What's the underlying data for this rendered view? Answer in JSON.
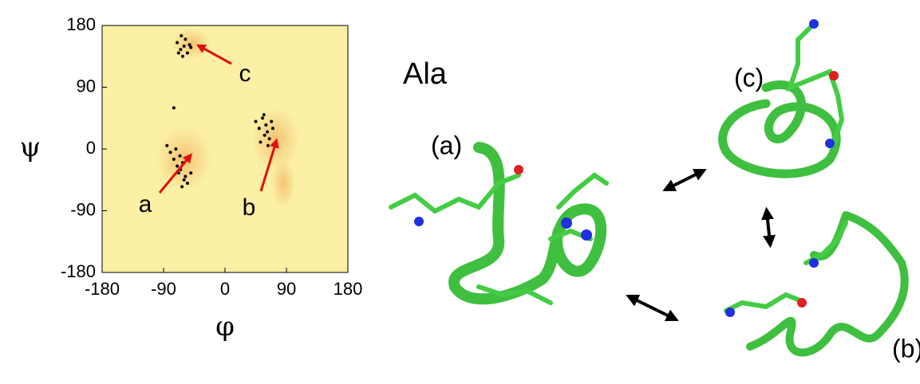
{
  "chart_data": {
    "type": "scatter",
    "xlabel": "φ",
    "ylabel": "ψ",
    "xlim": [
      -180,
      180
    ],
    "ylim": [
      -180,
      180
    ],
    "xticks": [
      -180,
      -90,
      0,
      90,
      180
    ],
    "yticks": [
      -180,
      -90,
      0,
      90,
      180
    ],
    "color": "#000000",
    "x": [
      -80,
      -75,
      -70,
      -68,
      -65,
      -62,
      -60,
      -58,
      -55,
      -72,
      -66,
      -50,
      -85,
      -63,
      45,
      50,
      55,
      58,
      60,
      62,
      65,
      68,
      52,
      70,
      57,
      63,
      -70,
      -65,
      -60,
      -55,
      -50,
      -62,
      -58,
      -68,
      -52,
      -64,
      -75
    ],
    "values": [
      -5,
      -15,
      -25,
      -35,
      -30,
      -20,
      -45,
      -40,
      -50,
      0,
      -10,
      -35,
      5,
      -55,
      40,
      30,
      45,
      20,
      35,
      25,
      15,
      40,
      10,
      30,
      50,
      5,
      155,
      145,
      150,
      140,
      148,
      135,
      160,
      140,
      152,
      165,
      60
    ],
    "annotations": [
      "a",
      "b",
      "c"
    ]
  },
  "figure": {
    "residue": "Ala",
    "structures": [
      "(a)",
      "(b)",
      "(c)"
    ]
  }
}
